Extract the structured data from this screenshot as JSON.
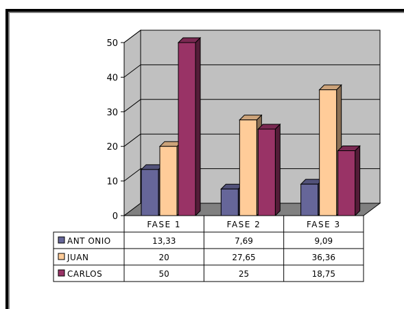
{
  "chart_data": {
    "type": "bar",
    "categories": [
      "FASE 1",
      "FASE 2",
      "FASE 3"
    ],
    "series": [
      {
        "name": "ANT ONIO",
        "values": [
          13.33,
          7.69,
          9.09
        ],
        "labels": [
          "13,33",
          "7,69",
          "9,09"
        ],
        "color": "#666699"
      },
      {
        "name": "JUAN",
        "values": [
          20,
          27.65,
          36.36
        ],
        "labels": [
          "20",
          "27,65",
          "36,36"
        ],
        "color": "#FFCC99"
      },
      {
        "name": "CARLOS",
        "values": [
          50,
          25,
          18.75
        ],
        "labels": [
          "50",
          "25",
          "18,75"
        ],
        "color": "#993366"
      }
    ],
    "yticks": [
      "0",
      "10",
      "20",
      "30",
      "40",
      "50"
    ],
    "ylim": [
      0,
      50
    ],
    "grid": true,
    "legend": "data-table-left",
    "colors": {
      "wall": "#c0c0c0",
      "floor": "#808080",
      "frame": "#000000"
    }
  }
}
